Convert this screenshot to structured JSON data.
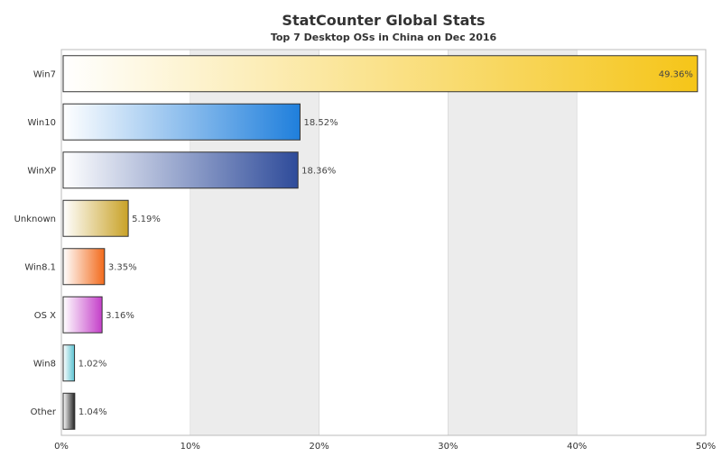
{
  "chart_data": {
    "type": "bar",
    "orientation": "horizontal",
    "title": "StatCounter Global Stats",
    "subtitle": "Top 7 Desktop OSs in China on Dec 2016",
    "categories": [
      "Win7",
      "Win10",
      "WinXP",
      "Unknown",
      "Win8.1",
      "OS X",
      "Win8",
      "Other"
    ],
    "values": [
      49.36,
      18.52,
      18.36,
      5.19,
      3.35,
      3.16,
      1.02,
      1.04
    ],
    "value_labels": [
      "49.36%",
      "18.52%",
      "18.36%",
      "5.19%",
      "3.35%",
      "3.16%",
      "1.02%",
      "1.04%"
    ],
    "colors": [
      "#f5c518",
      "#1f7fdc",
      "#2e4b9a",
      "#c9a227",
      "#f26a1b",
      "#c43fc9",
      "#5bc2d1",
      "#222222"
    ],
    "xlim": [
      0,
      50
    ],
    "xticks": [
      0,
      10,
      20,
      30,
      40,
      50
    ],
    "xtick_labels": [
      "0%",
      "10%",
      "20%",
      "30%",
      "40%",
      "50%"
    ],
    "grid": "alternating vertical bands"
  }
}
